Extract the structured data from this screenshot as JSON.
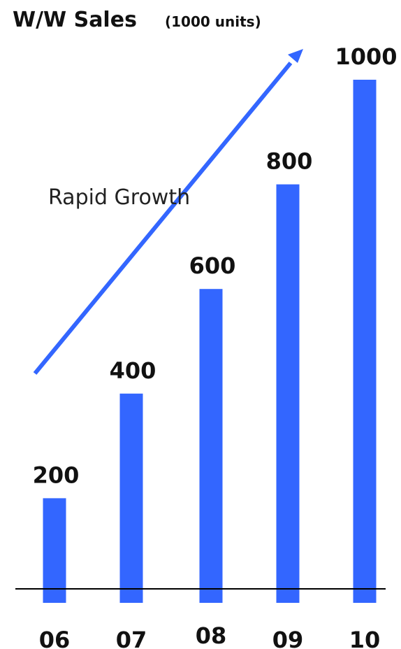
{
  "chart_data": {
    "type": "bar",
    "title": "W/W Sales",
    "subtitle": "(1000 units)",
    "categories": [
      "06",
      "07",
      "08",
      "09",
      "10"
    ],
    "values": [
      200,
      400,
      600,
      800,
      1000
    ],
    "annotation": "Rapid Growth",
    "colors": {
      "bar": "#3366ff",
      "arrow": "#3366ff",
      "baseline": "#000000"
    },
    "grid": false,
    "legend": "none"
  }
}
